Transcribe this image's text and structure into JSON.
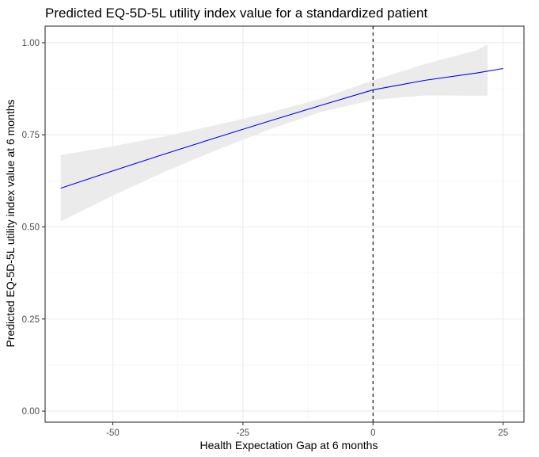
{
  "chart_data": {
    "type": "line",
    "title": "Predicted EQ-5D-5L utility index value for a standardized patient",
    "xlabel": "Health Expectation Gap at 6 months",
    "ylabel": "Predicted EQ-5D-5L utility index value at 6 months",
    "xlim": [
      -63,
      29
    ],
    "ylim": [
      -0.03,
      1.045
    ],
    "x_ticks": [
      -50,
      -25,
      0,
      25
    ],
    "x_tick_labels": [
      "-50",
      "-25",
      "0",
      "25"
    ],
    "y_ticks": [
      0,
      0.25,
      0.5,
      0.75,
      1.0
    ],
    "y_tick_labels": [
      "0.00",
      "0.25",
      "0.50",
      "0.75",
      "1.00"
    ],
    "grid": true,
    "legend": "none",
    "reference_line": {
      "x": 0,
      "style": "dashed",
      "color": "#000000"
    },
    "series": [
      {
        "color": "#0000ff",
        "x": [
          -60,
          -50,
          -40,
          -30,
          -20,
          -10,
          0,
          10,
          20,
          25
        ],
        "values": [
          0.605,
          0.652,
          0.698,
          0.743,
          0.787,
          0.83,
          0.872,
          0.898,
          0.918,
          0.93
        ]
      }
    ],
    "confidence_band": {
      "color": "#ebebeb",
      "x": [
        -60,
        -50,
        -40,
        -30,
        -20,
        -10,
        0,
        10,
        20,
        22
      ],
      "lower": [
        0.515,
        0.585,
        0.65,
        0.709,
        0.764,
        0.812,
        0.845,
        0.857,
        0.856,
        0.856
      ],
      "upper": [
        0.695,
        0.719,
        0.746,
        0.777,
        0.81,
        0.848,
        0.898,
        0.942,
        0.98,
        0.995
      ]
    }
  }
}
